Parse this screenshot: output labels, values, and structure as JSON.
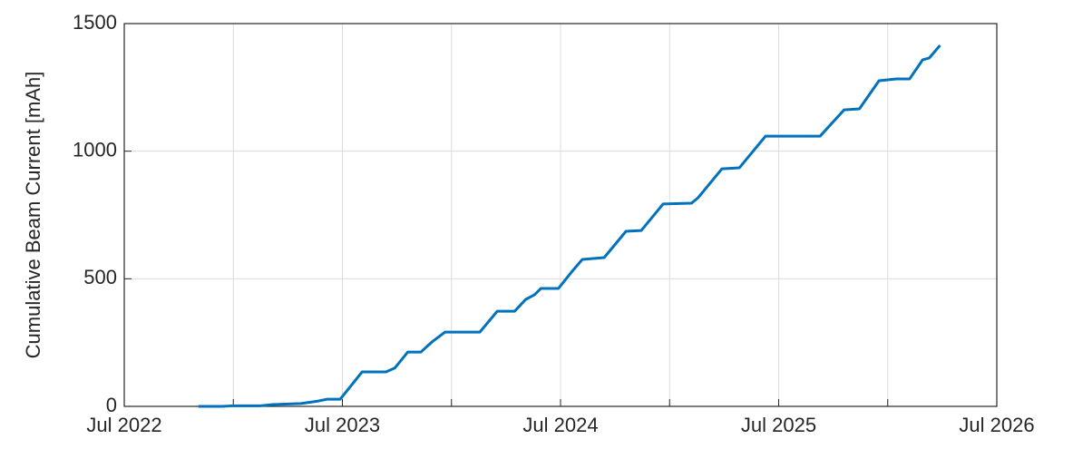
{
  "chart_data": {
    "type": "line",
    "ylabel": "Cumulative Beam Current [mAh]",
    "x": [
      2022.84,
      2022.95,
      2022.99,
      2023.12,
      2023.18,
      2023.31,
      2023.39,
      2023.43,
      2023.49,
      2023.59,
      2023.7,
      2023.74,
      2023.8,
      2023.86,
      2023.91,
      2023.97,
      2024.13,
      2024.21,
      2024.29,
      2024.34,
      2024.38,
      2024.41,
      2024.49,
      2024.55,
      2024.6,
      2024.7,
      2024.8,
      2024.87,
      2024.97,
      2025.1,
      2025.13,
      2025.24,
      2025.32,
      2025.44,
      2025.69,
      2025.8,
      2025.87,
      2025.96,
      2026.04,
      2026.1,
      2026.16,
      2026.19,
      2026.24
    ],
    "series": [
      {
        "name": "Cumulative Beam Current",
        "color": "#0072bd",
        "values": [
          0,
          0,
          2,
          2,
          7,
          11,
          21,
          28,
          28,
          135,
          135,
          150,
          213,
          213,
          252,
          291,
          291,
          373,
          373,
          419,
          437,
          462,
          462,
          526,
          576,
          583,
          686,
          689,
          793,
          796,
          817,
          931,
          935,
          1059,
          1059,
          1162,
          1166,
          1276,
          1283,
          1283,
          1358,
          1365,
          1415
        ]
      }
    ],
    "xlim": [
      2022.5,
      2026.5
    ],
    "xticks": [
      {
        "value": 2022.5,
        "label": "Jul 2022"
      },
      {
        "value": 2023.5,
        "label": "Jul 2023"
      },
      {
        "value": 2024.5,
        "label": "Jul 2024"
      },
      {
        "value": 2025.5,
        "label": "Jul 2025"
      },
      {
        "value": 2026.5,
        "label": "Jul 2026"
      }
    ],
    "xminorticks": [
      2023,
      2024,
      2025,
      2026
    ],
    "ylim": [
      0,
      1500
    ],
    "yticks": [
      0,
      500,
      1000,
      1500
    ],
    "grid": true
  }
}
